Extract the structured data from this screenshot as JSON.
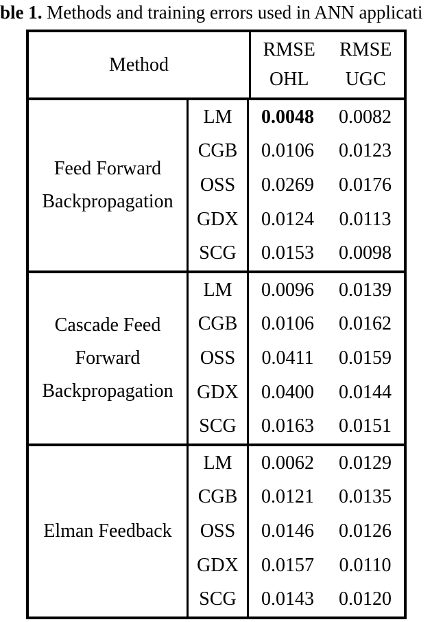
{
  "caption": {
    "label_bold": "ble 1.",
    "text": " Methods and training errors used in ANN applicati"
  },
  "table": {
    "header": {
      "method_label": "Method",
      "columns": [
        {
          "line1": "RMSE",
          "line2": "OHL"
        },
        {
          "line1": "RMSE",
          "line2": "UGC"
        }
      ]
    },
    "groups": [
      {
        "method": "Feed Forward Backpropagation",
        "rows": [
          {
            "algo": "LM",
            "ohl": "0.0048",
            "ugc": "0.0082",
            "ohl_bold": true
          },
          {
            "algo": "CGB",
            "ohl": "0.0106",
            "ugc": "0.0123",
            "ohl_bold": false
          },
          {
            "algo": "OSS",
            "ohl": "0.0269",
            "ugc": "0.0176",
            "ohl_bold": false
          },
          {
            "algo": "GDX",
            "ohl": "0.0124",
            "ugc": "0.0113",
            "ohl_bold": false
          },
          {
            "algo": "SCG",
            "ohl": "0.0153",
            "ugc": "0.0098",
            "ohl_bold": false
          }
        ]
      },
      {
        "method": "Cascade Feed Forward Backpropagation",
        "rows": [
          {
            "algo": "LM",
            "ohl": "0.0096",
            "ugc": "0.0139",
            "ohl_bold": false
          },
          {
            "algo": "CGB",
            "ohl": "0.0106",
            "ugc": "0.0162",
            "ohl_bold": false
          },
          {
            "algo": "OSS",
            "ohl": "0.0411",
            "ugc": "0.0159",
            "ohl_bold": false
          },
          {
            "algo": "GDX",
            "ohl": "0.0400",
            "ugc": "0.0144",
            "ohl_bold": false
          },
          {
            "algo": "SCG",
            "ohl": "0.0163",
            "ugc": "0.0151",
            "ohl_bold": false
          }
        ]
      },
      {
        "method": "Elman Feedback",
        "rows": [
          {
            "algo": "LM",
            "ohl": "0.0062",
            "ugc": "0.0129",
            "ohl_bold": false
          },
          {
            "algo": "CGB",
            "ohl": "0.0121",
            "ugc": "0.0135",
            "ohl_bold": false
          },
          {
            "algo": "OSS",
            "ohl": "0.0146",
            "ugc": "0.0126",
            "ohl_bold": false
          },
          {
            "algo": "GDX",
            "ohl": "0.0157",
            "ugc": "0.0110",
            "ohl_bold": false
          },
          {
            "algo": "SCG",
            "ohl": "0.0143",
            "ugc": "0.0120",
            "ohl_bold": false
          }
        ]
      }
    ]
  }
}
